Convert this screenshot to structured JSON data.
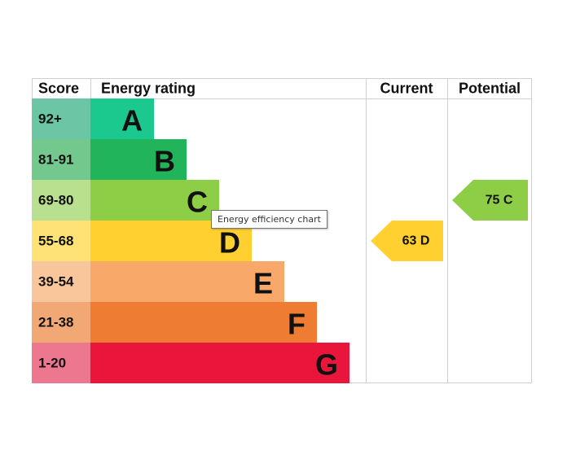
{
  "chart_data": {
    "type": "bar",
    "headers": {
      "score": "Score",
      "rating": "Energy rating",
      "current": "Current",
      "potential": "Potential"
    },
    "bands": [
      {
        "score": "92+",
        "letter": "A",
        "min": 92,
        "max": 100,
        "color": "#1bc98e",
        "score_bg": "#6cc6a6"
      },
      {
        "score": "81-91",
        "letter": "B",
        "min": 81,
        "max": 91,
        "color": "#22b45b",
        "score_bg": "#73c88e"
      },
      {
        "score": "69-80",
        "letter": "C",
        "min": 69,
        "max": 80,
        "color": "#8dce46",
        "score_bg": "#b8e08f"
      },
      {
        "score": "55-68",
        "letter": "D",
        "min": 55,
        "max": 68,
        "color": "#ffd02f",
        "score_bg": "#ffe276"
      },
      {
        "score": "39-54",
        "letter": "E",
        "min": 39,
        "max": 54,
        "color": "#f8a96a",
        "score_bg": "#f9c69c"
      },
      {
        "score": "21-38",
        "letter": "F",
        "min": 21,
        "max": 38,
        "color": "#ee7d33",
        "score_bg": "#f1a875"
      },
      {
        "score": "1-20",
        "letter": "G",
        "min": 1,
        "max": 20,
        "color": "#e9153b",
        "score_bg": "#ee7790"
      }
    ],
    "current": {
      "value": 63,
      "band": "D",
      "label": "63  D",
      "color": "#ffd02f"
    },
    "potential": {
      "value": 75,
      "band": "C",
      "label": "75  C",
      "color": "#8dce46"
    }
  },
  "tooltip": {
    "text": "Energy efficiency chart"
  }
}
